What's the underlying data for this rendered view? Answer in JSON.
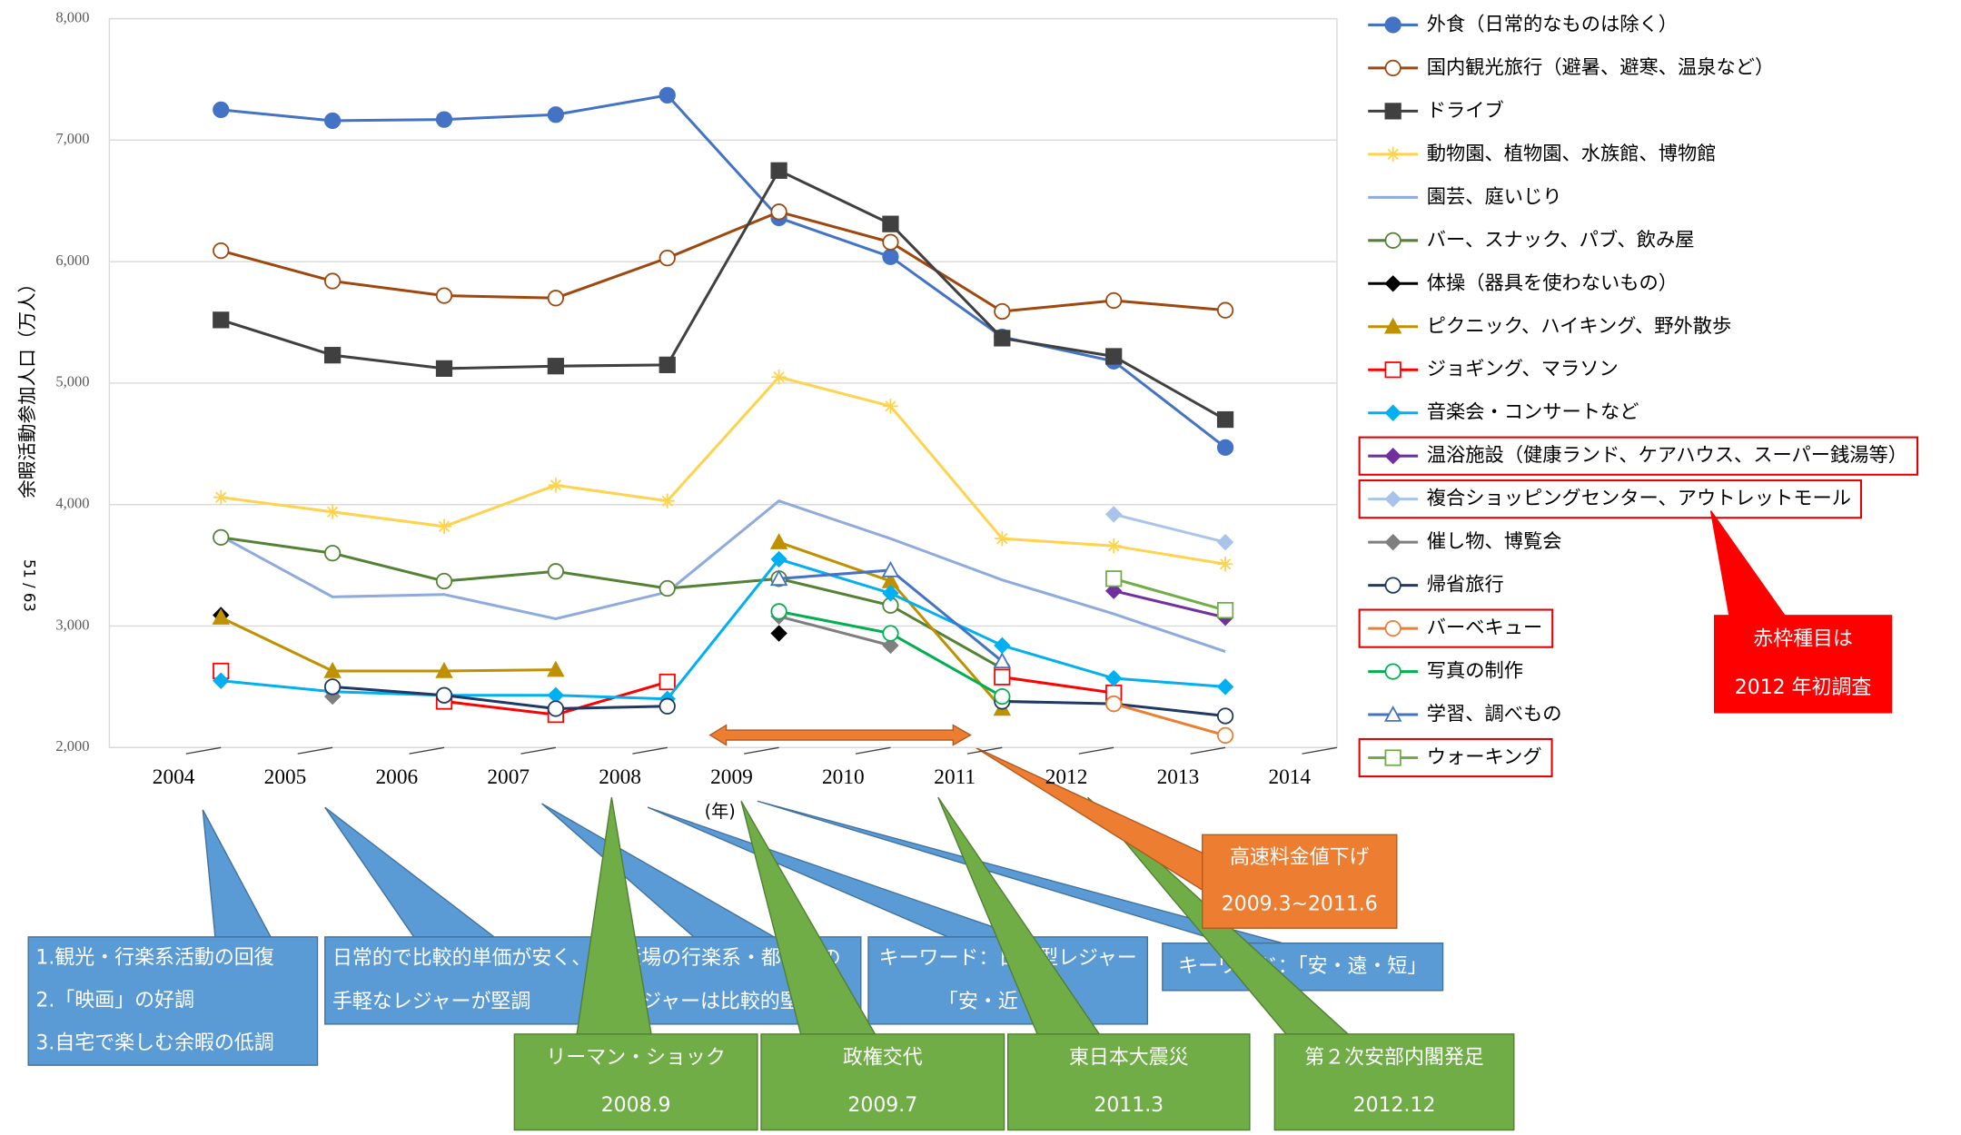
{
  "chart_data": {
    "type": "line",
    "y_axis_label": "余暇活動参加人口（万人）",
    "page_number": "51 / 63",
    "x_unit_label": "(年)",
    "x": [
      2004,
      2005,
      2006,
      2007,
      2008,
      2009,
      2010,
      2011,
      2012,
      2013
    ],
    "xlim": [
      2003,
      2014
    ],
    "xticks": [
      2004,
      2005,
      2006,
      2007,
      2008,
      2009,
      2010,
      2011,
      2012,
      2013,
      2014
    ],
    "ylim": [
      2000,
      8000
    ],
    "yticks": [
      {
        "value": 2000,
        "label": "2,000"
      },
      {
        "value": 3000,
        "label": "3,000"
      },
      {
        "value": 4000,
        "label": "4,000"
      },
      {
        "value": 5000,
        "label": "5,000"
      },
      {
        "value": 6000,
        "label": "6,000"
      },
      {
        "value": 7000,
        "label": "7,000"
      },
      {
        "value": 8000,
        "label": "8,000"
      }
    ],
    "grid": true,
    "legend": "right",
    "series": [
      {
        "name": "外食（日常的なものは除く）",
        "color": "#4472c4",
        "marker": "circle",
        "values": [
          7250,
          7160,
          7170,
          7210,
          7370,
          6360,
          6040,
          5380,
          5180,
          4470
        ]
      },
      {
        "name": "国内観光旅行（避暑、避寒、温泉など）",
        "color": "#9e480e",
        "marker": "open-circle",
        "values": [
          6090,
          5840,
          5720,
          5700,
          6030,
          6410,
          6160,
          5590,
          5680,
          5600
        ]
      },
      {
        "name": "ドライブ",
        "color": "#404040",
        "marker": "square",
        "values": [
          5520,
          5230,
          5120,
          5140,
          5150,
          6750,
          6310,
          5370,
          5220,
          4700
        ]
      },
      {
        "name": "動物園、植物園、水族館、博物館",
        "color": "#ffd34d",
        "marker": "star",
        "values": [
          4060,
          3940,
          3820,
          4160,
          4030,
          5050,
          4810,
          3720,
          3660,
          3510
        ]
      },
      {
        "name": "園芸、庭いじり",
        "color": "#8faadc",
        "marker": "none",
        "values": [
          3740,
          3240,
          3260,
          3060,
          3280,
          4030,
          3720,
          3380,
          3100,
          2790
        ]
      },
      {
        "name": "バー、スナック、パブ、飲み屋",
        "color": "#548235",
        "marker": "open-circle",
        "values": [
          3730,
          3600,
          3370,
          3450,
          3310,
          3390,
          3170,
          2650,
          null,
          null
        ]
      },
      {
        "name": "体操（器具を使わないもの）",
        "color": "#000000",
        "marker": "diamond",
        "values": [
          3090,
          null,
          null,
          null,
          null,
          2940,
          null,
          null,
          null,
          null
        ]
      },
      {
        "name": "ピクニック、ハイキング、野外散歩",
        "color": "#bf9000",
        "marker": "triangle",
        "values": [
          3070,
          2630,
          2630,
          2640,
          null,
          3690,
          3370,
          2320,
          null,
          null
        ]
      },
      {
        "name": "ジョギング、マラソン",
        "color": "#ff0000",
        "marker": "open-square",
        "values": [
          2630,
          null,
          2380,
          2270,
          2540,
          null,
          null,
          2580,
          2450,
          null
        ]
      },
      {
        "name": "音楽会・コンサートなど",
        "color": "#00b0f0",
        "marker": "diamond",
        "values": [
          2550,
          2460,
          2430,
          2430,
          2400,
          3550,
          3270,
          2840,
          2570,
          2500
        ]
      },
      {
        "name": "温浴施設（健康ランド、ケアハウス、スーパー銭湯等）",
        "color": "#7030a0",
        "marker": "diamond",
        "values": [
          null,
          null,
          null,
          null,
          null,
          null,
          null,
          null,
          3290,
          3070
        ]
      },
      {
        "name": "複合ショッピングセンター、アウトレットモール",
        "color": "#a9c4eb",
        "marker": "diamond",
        "values": [
          null,
          null,
          null,
          null,
          null,
          null,
          null,
          null,
          3920,
          3690
        ]
      },
      {
        "name": "催し物、博覧会",
        "color": "#7f7f7f",
        "marker": "diamond",
        "values": [
          null,
          2420,
          null,
          null,
          null,
          3080,
          2840,
          null,
          null,
          null
        ]
      },
      {
        "name": "帰省旅行",
        "color": "#1f3864",
        "marker": "open-circle",
        "values": [
          null,
          2500,
          2430,
          2320,
          2340,
          null,
          null,
          2380,
          2360,
          2260
        ]
      },
      {
        "name": "バーベキュー",
        "color": "#ed7d31",
        "marker": "open-circle",
        "values": [
          null,
          null,
          null,
          null,
          null,
          null,
          null,
          null,
          2360,
          2100
        ]
      },
      {
        "name": "写真の制作",
        "color": "#00b050",
        "marker": "open-circle",
        "values": [
          null,
          null,
          null,
          null,
          null,
          3120,
          2940,
          2420,
          null,
          null
        ]
      },
      {
        "name": "学習、調べもの",
        "color": "#4472c4",
        "marker": "open-triangle",
        "values": [
          null,
          null,
          null,
          null,
          null,
          3390,
          3460,
          2710,
          null,
          null
        ]
      },
      {
        "name": "ウォーキング",
        "color": "#70ad47",
        "marker": "open-square",
        "values": [
          null,
          null,
          null,
          null,
          null,
          null,
          null,
          null,
          3390,
          3130
        ]
      }
    ],
    "annotations": [
      {
        "lines": [
          "1.観光・行楽系活動の回復",
          "2.「映画」の好調",
          "3.自宅で楽しむ余暇の低調"
        ]
      },
      {
        "lines": [
          "日常的で比較的単価が安く、",
          "手軽なレジャーが堅調"
        ]
      },
      {
        "lines": [
          "近場の行楽系・都市型の",
          "レジャーは比較的堅調"
        ]
      },
      {
        "lines": [
          "キーワード：日常型レジャー",
          "「安・近・短」"
        ]
      },
      {
        "lines": [
          "キーワード：「安・遠・短」"
        ]
      },
      {
        "lines": [
          "リーマン・ショック",
          "2008.9"
        ]
      },
      {
        "lines": [
          "政権交代",
          "2009.7"
        ]
      },
      {
        "lines": [
          "東日本大震災",
          "2011.3"
        ]
      },
      {
        "lines": [
          "第２次安部内閣発足",
          "2012.12"
        ]
      },
      {
        "lines": [
          "高速料金値下げ",
          "2009.3~2011.6"
        ]
      },
      {
        "lines": [
          "赤枠種目は",
          "2012 年初調査"
        ]
      }
    ]
  }
}
